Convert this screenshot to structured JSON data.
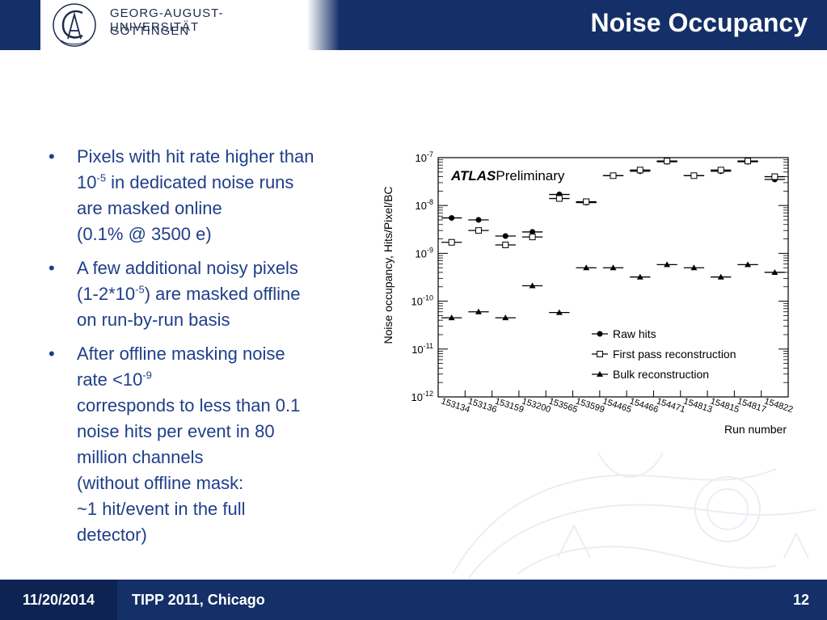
{
  "header": {
    "university_line1": "GEORG-AUGUST-UNIVERSITÄT",
    "university_line2": "GÖTTINGEN",
    "title": "Noise Occupancy"
  },
  "bullets": [
    {
      "lines": [
        "Pixels with hit rate higher than",
        "10|-5| in dedicated noise runs",
        "are masked online",
        "(0.1% @ 3500 e)"
      ]
    },
    {
      "lines": [
        "A few additional noisy pixels",
        "(1-2*10|-5|) are masked offline",
        "on run-by-run basis"
      ]
    },
    {
      "lines": [
        "After offline masking noise",
        "rate <10|-9|",
        "corresponds to less than 0.1",
        "noise hits per event in 80",
        "million channels",
        "(without offline mask:",
        "~1 hit/event in the full",
        "detector)"
      ]
    }
  ],
  "bullet_glyph": "•",
  "footer": {
    "date": "11/20/2014",
    "conference": "TIPP 2011, Chicago",
    "page": "12"
  },
  "colors": {
    "header_bg": "#153068",
    "bullet_text": "#1f3e8a",
    "footer_date_bg": "#0d2453"
  },
  "chart_data": {
    "type": "scatter",
    "y_scale": "log",
    "ylabel": "Noise occupancy, Hits/Pixel/BC",
    "xlabel": "Run number",
    "atlas_label": "ATLAS",
    "atlas_sub": "Preliminary",
    "categories": [
      "153134",
      "153136",
      "153159",
      "153200",
      "153565",
      "153599",
      "154465",
      "154466",
      "154471",
      "154813",
      "154815",
      "154817",
      "154822"
    ],
    "y_ticks": [
      {
        "base": "10",
        "exp": "-12"
      },
      {
        "base": "10",
        "exp": "-11"
      },
      {
        "base": "10",
        "exp": "-10"
      },
      {
        "base": "10",
        "exp": "-9"
      },
      {
        "base": "10",
        "exp": "-8"
      },
      {
        "base": "10",
        "exp": "-7"
      }
    ],
    "ylim_exp": [
      -12,
      -7
    ],
    "legend_position": "bottom-right",
    "series": [
      {
        "name": "Raw hits",
        "marker": "filled-circle",
        "values": [
          5.5e-09,
          5e-09,
          2.3e-09,
          2.8e-09,
          1.7e-08,
          1.15e-08,
          4.2e-08,
          5.2e-08,
          8.2e-08,
          4.2e-08,
          5.2e-08,
          8.2e-08,
          3.5e-08
        ]
      },
      {
        "name": "First pass reconstruction",
        "marker": "open-square",
        "values": [
          1.7e-09,
          3e-09,
          1.5e-09,
          2.2e-09,
          1.4e-08,
          1.2e-08,
          4.2e-08,
          5.5e-08,
          8.5e-08,
          4.2e-08,
          5.5e-08,
          8.5e-08,
          4e-08
        ]
      },
      {
        "name": "Bulk reconstruction",
        "marker": "filled-triangle",
        "values": [
          4.5e-11,
          6e-11,
          4.5e-11,
          2.1e-10,
          5.8e-11,
          5e-10,
          5e-10,
          3.2e-10,
          5.8e-10,
          5e-10,
          3.2e-10,
          5.8e-10,
          4e-10
        ]
      }
    ]
  }
}
